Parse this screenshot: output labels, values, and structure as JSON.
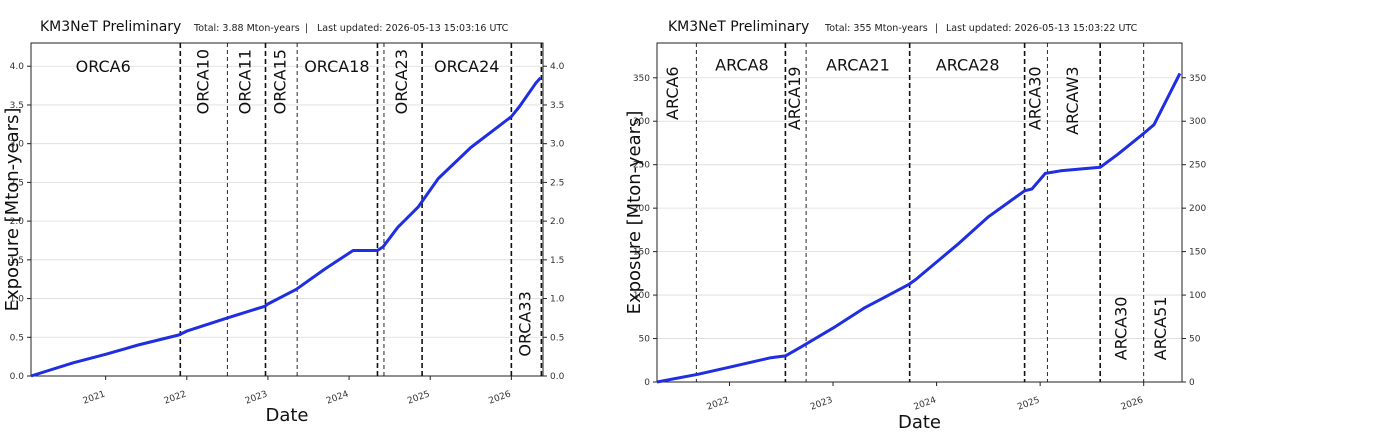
{
  "chart_data": [
    {
      "type": "line",
      "header_title": "KM3NeT Preliminary",
      "header_total": "Total: 3.88 Mton-years",
      "header_sep": "|",
      "header_updated": "Last updated: 2026-05-13 15:03:16 UTC",
      "xlabel": "Date",
      "ylabel": "Exposure [Mton-years]",
      "xlim": [
        2020.08,
        2026.39
      ],
      "ylim": [
        0,
        4.3
      ],
      "y_ticks": [
        0.0,
        0.5,
        1.0,
        1.5,
        2.0,
        2.5,
        3.0,
        3.5,
        4.0
      ],
      "y_tick_labels": [
        "0.0",
        "0.5",
        "1.0",
        "1.5",
        "2.0",
        "2.5",
        "3.0",
        "3.5",
        "4.0"
      ],
      "x_ticks": [
        2021,
        2022,
        2023,
        2024,
        2025,
        2026
      ],
      "x_tick_labels": [
        "2021",
        "2022",
        "2023",
        "2024",
        "2025",
        "2026"
      ],
      "grid": true,
      "line_color": "#1f2ee0",
      "series": [
        {
          "x": [
            2020.08,
            2020.6,
            2021.0,
            2021.4,
            2021.9,
            2022.0,
            2022.5,
            2022.96,
            2023.0,
            2023.35,
            2023.7,
            2024.05,
            2024.35,
            2024.42,
            2024.6,
            2024.85,
            2025.1,
            2025.5,
            2026.0,
            2026.1,
            2026.3,
            2026.36
          ],
          "y": [
            0.0,
            0.17,
            0.28,
            0.4,
            0.53,
            0.58,
            0.75,
            0.9,
            0.93,
            1.12,
            1.38,
            1.62,
            1.62,
            1.67,
            1.92,
            2.18,
            2.55,
            2.95,
            3.35,
            3.48,
            3.78,
            3.85
          ]
        }
      ],
      "vlines": [
        {
          "x": 2021.92,
          "style": "thick"
        },
        {
          "x": 2022.5,
          "style": "thin"
        },
        {
          "x": 2022.97,
          "style": "thick"
        },
        {
          "x": 2023.36,
          "style": "thin"
        },
        {
          "x": 2024.35,
          "style": "thick"
        },
        {
          "x": 2024.43,
          "style": "thin"
        },
        {
          "x": 2024.9,
          "style": "thick"
        },
        {
          "x": 2026.0,
          "style": "thick"
        },
        {
          "x": 2026.37,
          "style": "thick"
        }
      ],
      "regions": [
        {
          "label": "ORCA6",
          "x": 2020.97,
          "y": 4.0,
          "orientation": "horizontal"
        },
        {
          "label": "ORCA10",
          "x": 2022.21,
          "y": 4.3,
          "orientation": "vertical"
        },
        {
          "label": "ORCA11",
          "x": 2022.73,
          "y": 4.3,
          "orientation": "vertical"
        },
        {
          "label": "ORCA15",
          "x": 2023.16,
          "y": 4.3,
          "orientation": "vertical"
        },
        {
          "label": "ORCA18",
          "x": 2023.85,
          "y": 4.0,
          "orientation": "horizontal"
        },
        {
          "label": "ORCA23",
          "x": 2024.66,
          "y": 4.3,
          "orientation": "vertical"
        },
        {
          "label": "ORCA24",
          "x": 2025.45,
          "y": 4.0,
          "orientation": "horizontal"
        },
        {
          "label": "ORCA33",
          "x": 2026.18,
          "y": 0.25,
          "orientation": "vertical-bottom"
        }
      ]
    },
    {
      "type": "line",
      "header_title": "KM3NeT Preliminary",
      "header_total": "Total: 355 Mton-years",
      "header_sep": "|",
      "header_updated": "Last updated: 2026-05-13 15:03:22 UTC",
      "xlabel": "Date",
      "ylabel": "Exposure [Mton-years]",
      "xlim": [
        2021.3,
        2026.37
      ],
      "ylim": [
        0,
        390
      ],
      "y_ticks": [
        0,
        50,
        100,
        150,
        200,
        250,
        300,
        350
      ],
      "y_tick_labels": [
        "0",
        "50",
        "100",
        "150",
        "200",
        "250",
        "300",
        "350"
      ],
      "x_ticks": [
        2022,
        2023,
        2024,
        2025,
        2026
      ],
      "x_tick_labels": [
        "2022",
        "2023",
        "2024",
        "2025",
        "2026"
      ],
      "grid": true,
      "line_color": "#1f2ee0",
      "series": [
        {
          "x": [
            2021.3,
            2021.7,
            2022.0,
            2022.4,
            2022.54,
            2022.7,
            2023.0,
            2023.3,
            2023.73,
            2023.8,
            2024.2,
            2024.5,
            2024.85,
            2024.92,
            2025.05,
            2025.2,
            2025.58,
            2025.75,
            2026.0,
            2026.1,
            2026.35
          ],
          "y": [
            0,
            9,
            17,
            28,
            30,
            41,
            62,
            85,
            112,
            118,
            158,
            190,
            220,
            222,
            240,
            243,
            247,
            262,
            286,
            296,
            355
          ]
        }
      ],
      "vlines": [
        {
          "x": 2021.68,
          "style": "thin"
        },
        {
          "x": 2022.54,
          "style": "thick"
        },
        {
          "x": 2022.74,
          "style": "thin"
        },
        {
          "x": 2023.74,
          "style": "thick"
        },
        {
          "x": 2024.85,
          "style": "thick"
        },
        {
          "x": 2025.07,
          "style": "thin"
        },
        {
          "x": 2025.58,
          "style": "thick"
        },
        {
          "x": 2026.0,
          "style": "thin"
        }
      ],
      "regions": [
        {
          "label": "ARCA6",
          "x": 2021.46,
          "y": 370,
          "orientation": "vertical"
        },
        {
          "label": "ARCA8",
          "x": 2022.12,
          "y": 365,
          "orientation": "horizontal"
        },
        {
          "label": "ARCA19",
          "x": 2022.64,
          "y": 370,
          "orientation": "vertical"
        },
        {
          "label": "ARCA21",
          "x": 2023.24,
          "y": 365,
          "orientation": "horizontal"
        },
        {
          "label": "ARCA28",
          "x": 2024.3,
          "y": 365,
          "orientation": "horizontal"
        },
        {
          "label": "ARCA30",
          "x": 2024.96,
          "y": 370,
          "orientation": "vertical"
        },
        {
          "label": "ARCAW3",
          "x": 2025.32,
          "y": 370,
          "orientation": "vertical"
        },
        {
          "label": "ARCA30",
          "x": 2025.79,
          "y": 25,
          "orientation": "vertical-bottom"
        },
        {
          "label": "ARCA51",
          "x": 2026.17,
          "y": 25,
          "orientation": "vertical-bottom"
        }
      ]
    }
  ]
}
